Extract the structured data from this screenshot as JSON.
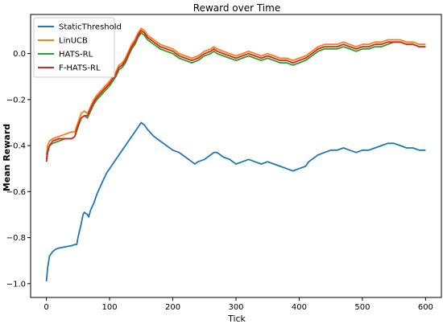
{
  "chart_data": {
    "type": "line",
    "title": "Reward over Time",
    "xlabel": "Tick",
    "ylabel": "Mean Reward",
    "xlim": [
      -25,
      625
    ],
    "ylim": [
      -1.06,
      0.17
    ],
    "xticks": [
      0,
      100,
      200,
      300,
      400,
      500,
      600
    ],
    "yticks": [
      -1.0,
      -0.8,
      -0.6,
      -0.4,
      -0.2,
      0.0
    ],
    "ytick_labels": [
      "−1.0",
      "−0.8",
      "−0.6",
      "−0.4",
      "−0.2",
      "0.0"
    ],
    "grid": false,
    "legend_position": "top-left",
    "series": [
      {
        "name": "StaticThreshold",
        "color": "#1f77b4",
        "points": [
          [
            0,
            -0.99
          ],
          [
            2,
            -0.93
          ],
          [
            5,
            -0.88
          ],
          [
            10,
            -0.86
          ],
          [
            15,
            -0.85
          ],
          [
            20,
            -0.845
          ],
          [
            30,
            -0.84
          ],
          [
            40,
            -0.835
          ],
          [
            45,
            -0.83
          ],
          [
            48,
            -0.83
          ],
          [
            50,
            -0.8
          ],
          [
            55,
            -0.74
          ],
          [
            58,
            -0.7
          ],
          [
            60,
            -0.69
          ],
          [
            65,
            -0.7
          ],
          [
            67,
            -0.71
          ],
          [
            70,
            -0.68
          ],
          [
            75,
            -0.65
          ],
          [
            80,
            -0.61
          ],
          [
            85,
            -0.58
          ],
          [
            90,
            -0.55
          ],
          [
            95,
            -0.52
          ],
          [
            100,
            -0.5
          ],
          [
            105,
            -0.48
          ],
          [
            110,
            -0.46
          ],
          [
            115,
            -0.44
          ],
          [
            120,
            -0.42
          ],
          [
            125,
            -0.4
          ],
          [
            130,
            -0.38
          ],
          [
            135,
            -0.36
          ],
          [
            140,
            -0.34
          ],
          [
            145,
            -0.32
          ],
          [
            150,
            -0.3
          ],
          [
            155,
            -0.31
          ],
          [
            160,
            -0.33
          ],
          [
            170,
            -0.36
          ],
          [
            180,
            -0.38
          ],
          [
            190,
            -0.4
          ],
          [
            200,
            -0.42
          ],
          [
            210,
            -0.43
          ],
          [
            220,
            -0.45
          ],
          [
            230,
            -0.47
          ],
          [
            235,
            -0.48
          ],
          [
            240,
            -0.47
          ],
          [
            250,
            -0.46
          ],
          [
            260,
            -0.44
          ],
          [
            265,
            -0.43
          ],
          [
            270,
            -0.43
          ],
          [
            280,
            -0.45
          ],
          [
            290,
            -0.46
          ],
          [
            300,
            -0.48
          ],
          [
            310,
            -0.47
          ],
          [
            320,
            -0.46
          ],
          [
            330,
            -0.47
          ],
          [
            340,
            -0.48
          ],
          [
            350,
            -0.47
          ],
          [
            360,
            -0.48
          ],
          [
            370,
            -0.49
          ],
          [
            380,
            -0.5
          ],
          [
            390,
            -0.51
          ],
          [
            400,
            -0.5
          ],
          [
            410,
            -0.49
          ],
          [
            415,
            -0.47
          ],
          [
            420,
            -0.46
          ],
          [
            430,
            -0.44
          ],
          [
            440,
            -0.43
          ],
          [
            450,
            -0.42
          ],
          [
            460,
            -0.42
          ],
          [
            470,
            -0.41
          ],
          [
            480,
            -0.42
          ],
          [
            490,
            -0.43
          ],
          [
            500,
            -0.42
          ],
          [
            510,
            -0.42
          ],
          [
            520,
            -0.41
          ],
          [
            530,
            -0.4
          ],
          [
            540,
            -0.39
          ],
          [
            550,
            -0.39
          ],
          [
            560,
            -0.4
          ],
          [
            570,
            -0.41
          ],
          [
            580,
            -0.41
          ],
          [
            590,
            -0.42
          ],
          [
            600,
            -0.42
          ]
        ]
      },
      {
        "name": "LinUCB",
        "color": "#ff7f0e",
        "points": [
          [
            0,
            -0.44
          ],
          [
            2,
            -0.4
          ],
          [
            5,
            -0.38
          ],
          [
            10,
            -0.37
          ],
          [
            20,
            -0.36
          ],
          [
            30,
            -0.35
          ],
          [
            40,
            -0.34
          ],
          [
            45,
            -0.34
          ],
          [
            50,
            -0.3
          ],
          [
            55,
            -0.26
          ],
          [
            60,
            -0.25
          ],
          [
            65,
            -0.26
          ],
          [
            70,
            -0.23
          ],
          [
            75,
            -0.2
          ],
          [
            80,
            -0.18
          ],
          [
            90,
            -0.15
          ],
          [
            100,
            -0.12
          ],
          [
            110,
            -0.08
          ],
          [
            115,
            -0.05
          ],
          [
            120,
            -0.04
          ],
          [
            125,
            -0.02
          ],
          [
            130,
            0.01
          ],
          [
            135,
            0.04
          ],
          [
            140,
            0.06
          ],
          [
            145,
            0.09
          ],
          [
            150,
            0.11
          ],
          [
            155,
            0.1
          ],
          [
            160,
            0.08
          ],
          [
            170,
            0.06
          ],
          [
            180,
            0.04
          ],
          [
            190,
            0.03
          ],
          [
            200,
            0.02
          ],
          [
            210,
            0.0
          ],
          [
            220,
            -0.01
          ],
          [
            230,
            -0.02
          ],
          [
            240,
            -0.01
          ],
          [
            250,
            0.01
          ],
          [
            260,
            0.02
          ],
          [
            265,
            0.03
          ],
          [
            270,
            0.02
          ],
          [
            280,
            0.01
          ],
          [
            290,
            0.0
          ],
          [
            300,
            -0.01
          ],
          [
            310,
            0.0
          ],
          [
            320,
            0.01
          ],
          [
            330,
            0.0
          ],
          [
            340,
            -0.01
          ],
          [
            350,
            0.0
          ],
          [
            360,
            -0.01
          ],
          [
            370,
            -0.02
          ],
          [
            380,
            -0.02
          ],
          [
            390,
            -0.03
          ],
          [
            400,
            -0.02
          ],
          [
            410,
            -0.01
          ],
          [
            420,
            0.01
          ],
          [
            430,
            0.03
          ],
          [
            440,
            0.04
          ],
          [
            450,
            0.04
          ],
          [
            460,
            0.04
          ],
          [
            470,
            0.05
          ],
          [
            480,
            0.04
          ],
          [
            490,
            0.03
          ],
          [
            500,
            0.04
          ],
          [
            510,
            0.04
          ],
          [
            520,
            0.05
          ],
          [
            530,
            0.05
          ],
          [
            540,
            0.06
          ],
          [
            550,
            0.06
          ],
          [
            560,
            0.06
          ],
          [
            570,
            0.05
          ],
          [
            580,
            0.05
          ],
          [
            590,
            0.04
          ],
          [
            600,
            0.04
          ]
        ]
      },
      {
        "name": "HATS-RL",
        "color": "#2ca02c",
        "points": [
          [
            0,
            -0.46
          ],
          [
            2,
            -0.42
          ],
          [
            5,
            -0.4
          ],
          [
            10,
            -0.39
          ],
          [
            20,
            -0.38
          ],
          [
            30,
            -0.37
          ],
          [
            40,
            -0.37
          ],
          [
            45,
            -0.36
          ],
          [
            50,
            -0.32
          ],
          [
            55,
            -0.28
          ],
          [
            60,
            -0.27
          ],
          [
            65,
            -0.28
          ],
          [
            70,
            -0.25
          ],
          [
            75,
            -0.22
          ],
          [
            80,
            -0.2
          ],
          [
            90,
            -0.17
          ],
          [
            100,
            -0.14
          ],
          [
            110,
            -0.1
          ],
          [
            115,
            -0.07
          ],
          [
            120,
            -0.06
          ],
          [
            125,
            -0.04
          ],
          [
            130,
            -0.01
          ],
          [
            135,
            0.02
          ],
          [
            140,
            0.04
          ],
          [
            145,
            0.07
          ],
          [
            150,
            0.09
          ],
          [
            155,
            0.08
          ],
          [
            160,
            0.06
          ],
          [
            170,
            0.04
          ],
          [
            180,
            0.02
          ],
          [
            190,
            0.01
          ],
          [
            200,
            0.0
          ],
          [
            210,
            -0.02
          ],
          [
            220,
            -0.03
          ],
          [
            230,
            -0.04
          ],
          [
            240,
            -0.03
          ],
          [
            250,
            -0.01
          ],
          [
            260,
            0.0
          ],
          [
            265,
            0.01
          ],
          [
            270,
            0.0
          ],
          [
            280,
            -0.01
          ],
          [
            290,
            -0.02
          ],
          [
            300,
            -0.03
          ],
          [
            310,
            -0.02
          ],
          [
            320,
            -0.01
          ],
          [
            330,
            -0.02
          ],
          [
            340,
            -0.03
          ],
          [
            350,
            -0.02
          ],
          [
            360,
            -0.03
          ],
          [
            370,
            -0.04
          ],
          [
            380,
            -0.04
          ],
          [
            390,
            -0.05
          ],
          [
            400,
            -0.04
          ],
          [
            410,
            -0.03
          ],
          [
            420,
            -0.01
          ],
          [
            430,
            0.01
          ],
          [
            440,
            0.02
          ],
          [
            450,
            0.02
          ],
          [
            460,
            0.02
          ],
          [
            470,
            0.03
          ],
          [
            480,
            0.02
          ],
          [
            490,
            0.01
          ],
          [
            500,
            0.02
          ],
          [
            510,
            0.02
          ],
          [
            520,
            0.03
          ],
          [
            530,
            0.03
          ],
          [
            540,
            0.04
          ],
          [
            550,
            0.05
          ],
          [
            560,
            0.05
          ],
          [
            570,
            0.04
          ],
          [
            580,
            0.04
          ],
          [
            590,
            0.03
          ],
          [
            600,
            0.03
          ]
        ]
      },
      {
        "name": "F-HATS-RL",
        "color": "#d62728",
        "points": [
          [
            0,
            -0.47
          ],
          [
            2,
            -0.43
          ],
          [
            5,
            -0.4
          ],
          [
            10,
            -0.38
          ],
          [
            20,
            -0.37
          ],
          [
            30,
            -0.37
          ],
          [
            40,
            -0.37
          ],
          [
            45,
            -0.36
          ],
          [
            50,
            -0.31
          ],
          [
            55,
            -0.28
          ],
          [
            60,
            -0.27
          ],
          [
            65,
            -0.27
          ],
          [
            70,
            -0.24
          ],
          [
            75,
            -0.21
          ],
          [
            80,
            -0.19
          ],
          [
            90,
            -0.16
          ],
          [
            100,
            -0.13
          ],
          [
            110,
            -0.09
          ],
          [
            115,
            -0.06
          ],
          [
            120,
            -0.05
          ],
          [
            125,
            -0.03
          ],
          [
            130,
            0.0
          ],
          [
            135,
            0.03
          ],
          [
            140,
            0.05
          ],
          [
            145,
            0.08
          ],
          [
            150,
            0.1
          ],
          [
            155,
            0.09
          ],
          [
            160,
            0.07
          ],
          [
            170,
            0.05
          ],
          [
            180,
            0.03
          ],
          [
            190,
            0.02
          ],
          [
            200,
            0.01
          ],
          [
            210,
            -0.01
          ],
          [
            220,
            -0.02
          ],
          [
            230,
            -0.03
          ],
          [
            240,
            -0.02
          ],
          [
            250,
            0.0
          ],
          [
            260,
            0.01
          ],
          [
            265,
            0.02
          ],
          [
            270,
            0.01
          ],
          [
            280,
            0.0
          ],
          [
            290,
            -0.01
          ],
          [
            300,
            -0.02
          ],
          [
            310,
            -0.01
          ],
          [
            320,
            0.0
          ],
          [
            330,
            -0.01
          ],
          [
            340,
            -0.02
          ],
          [
            350,
            -0.01
          ],
          [
            360,
            -0.02
          ],
          [
            370,
            -0.03
          ],
          [
            380,
            -0.03
          ],
          [
            390,
            -0.04
          ],
          [
            400,
            -0.03
          ],
          [
            410,
            -0.02
          ],
          [
            420,
            0.0
          ],
          [
            430,
            0.02
          ],
          [
            440,
            0.03
          ],
          [
            450,
            0.03
          ],
          [
            460,
            0.03
          ],
          [
            470,
            0.04
          ],
          [
            480,
            0.03
          ],
          [
            490,
            0.02
          ],
          [
            500,
            0.03
          ],
          [
            510,
            0.03
          ],
          [
            520,
            0.04
          ],
          [
            530,
            0.04
          ],
          [
            540,
            0.05
          ],
          [
            550,
            0.05
          ],
          [
            560,
            0.05
          ],
          [
            570,
            0.04
          ],
          [
            580,
            0.04
          ],
          [
            590,
            0.03
          ],
          [
            600,
            0.03
          ]
        ]
      }
    ]
  }
}
